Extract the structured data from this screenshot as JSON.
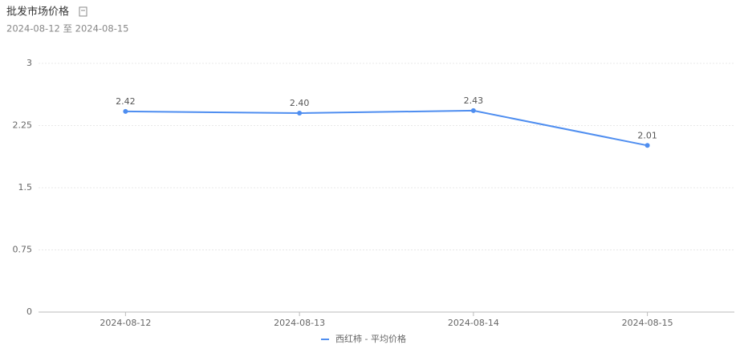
{
  "chart_data": {
    "type": "line",
    "title": "批发市场价格",
    "subtitle": "2024-08-12 至 2024-08-15",
    "categories": [
      "2024-08-12",
      "2024-08-13",
      "2024-08-14",
      "2024-08-15"
    ],
    "series": [
      {
        "name": "西红柿 - 平均价格",
        "color": "#4f8ef0",
        "values": [
          2.42,
          2.4,
          2.43,
          2.01
        ],
        "value_labels": [
          "2.42",
          "2.40",
          "2.43",
          "2.01"
        ]
      }
    ],
    "ylim": [
      0,
      3
    ],
    "yticks": [
      0,
      0.75,
      1.5,
      2.25,
      3
    ],
    "grid": true
  }
}
